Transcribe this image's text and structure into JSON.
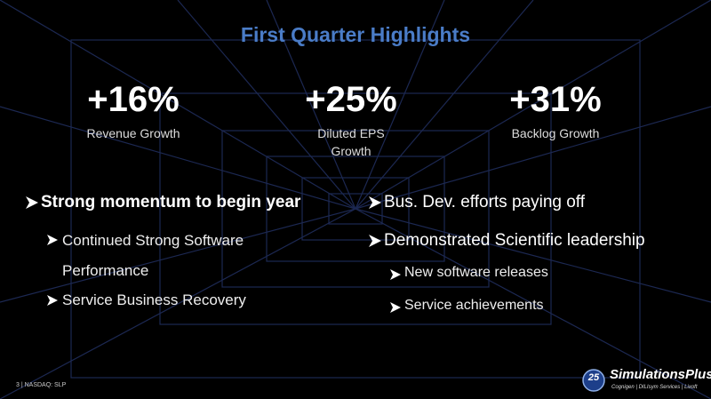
{
  "header": {
    "title": "First Quarter Highlights"
  },
  "metrics": [
    {
      "value": "+16%",
      "label": "Revenue Growth"
    },
    {
      "value": "+25%",
      "label": "Diluted EPS Growth"
    },
    {
      "value": "+31%",
      "label": "Backlog Growth"
    }
  ],
  "left_bullets": {
    "main": "Strong momentum to begin year",
    "subs": [
      "Continued Strong Software Performance",
      "Service Business Recovery"
    ]
  },
  "right_bullets": {
    "mains": [
      "Bus. Dev. efforts paying off",
      "Demonstrated Scientific leadership"
    ],
    "subs": [
      "New software releases",
      "Service achievements"
    ]
  },
  "footer": {
    "page": "3 | NASDAQ: SLP"
  },
  "logo": {
    "badge": "25",
    "name": "SimulationsPlus",
    "tagline": "Cognigen | DILIsym Services | Lixoft"
  }
}
